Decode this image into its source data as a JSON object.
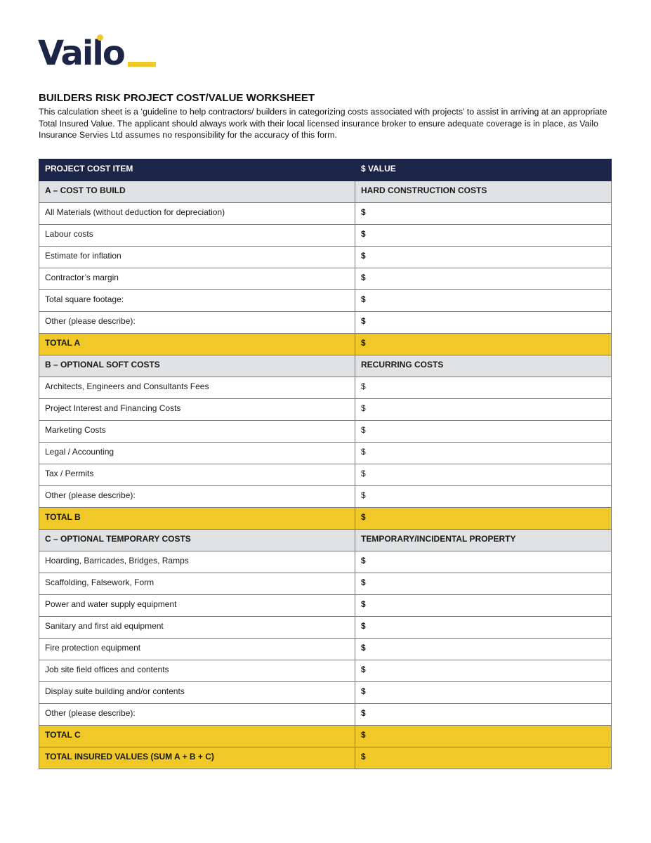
{
  "logo": {
    "text": "Vailo",
    "colors": {
      "navy": "#1c2448",
      "yellow": "#f0c929"
    }
  },
  "title": "BUILDERS RISK PROJECT COST/VALUE WORKSHEET",
  "intro": "This calculation sheet is a ‘guideline to help contractors/ builders in categorizing costs associated with projects’ to assist in arriving at an appropriate Total Insured Value. The applicant should always work with their local licensed insurance broker to ensure adequate coverage is in place, as Vailo Insurance Servies Ltd assumes no responsibility for the accuracy of this form.",
  "table": {
    "headers": [
      "PROJECT COST ITEM",
      "$ VALUE"
    ],
    "rows": [
      {
        "type": "sec",
        "item": "A – COST TO BUILD",
        "value": "HARD CONSTRUCTION COSTS"
      },
      {
        "type": "row",
        "item": "All Materials (without deduction for depreciation)",
        "value": "$",
        "bold": true
      },
      {
        "type": "row",
        "item": "Labour costs",
        "value": "$",
        "bold": true
      },
      {
        "type": "row",
        "item": "Estimate for inflation",
        "value": "$",
        "bold": true
      },
      {
        "type": "row",
        "item": "Contractor’s margin",
        "value": "$",
        "bold": true
      },
      {
        "type": "row",
        "item": "Total square footage:",
        "value": "$",
        "bold": true
      },
      {
        "type": "row",
        "item": "Other (please describe):",
        "value": "$",
        "bold": true
      },
      {
        "type": "tot",
        "item": "TOTAL A",
        "value": "$"
      },
      {
        "type": "sec",
        "item": "B – OPTIONAL SOFT COSTS",
        "value": "RECURRING COSTS"
      },
      {
        "type": "row",
        "item": "Architects, Engineers and Consultants Fees",
        "value": "$",
        "bold": false
      },
      {
        "type": "row",
        "item": "Project Interest and Financing Costs",
        "value": "$",
        "bold": false
      },
      {
        "type": "row",
        "item": "Marketing Costs",
        "value": "$",
        "bold": false
      },
      {
        "type": "row",
        "item": "Legal / Accounting",
        "value": "$",
        "bold": false
      },
      {
        "type": "row",
        "item": "Tax / Permits",
        "value": "$",
        "bold": false
      },
      {
        "type": "row",
        "item": "Other (please describe):",
        "value": "$",
        "bold": false
      },
      {
        "type": "tot",
        "item": "TOTAL B",
        "value": "$"
      },
      {
        "type": "sec",
        "item": "C – OPTIONAL TEMPORARY COSTS",
        "value": "TEMPORARY/INCIDENTAL PROPERTY"
      },
      {
        "type": "row",
        "item": "Hoarding, Barricades, Bridges, Ramps",
        "value": "$",
        "bold": true
      },
      {
        "type": "row",
        "item": "Scaffolding, Falsework, Form",
        "value": "$",
        "bold": true
      },
      {
        "type": "row",
        "item": "Power and water supply equipment",
        "value": "$",
        "bold": true
      },
      {
        "type": "row",
        "item": "Sanitary and first aid equipment",
        "value": "$",
        "bold": true
      },
      {
        "type": "row",
        "item": "Fire protection equipment",
        "value": "$",
        "bold": true
      },
      {
        "type": "row",
        "item": "Job site field offices and contents",
        "value": "$",
        "bold": true
      },
      {
        "type": "row",
        "item": "Display suite building and/or contents",
        "value": "$",
        "bold": true
      },
      {
        "type": "row",
        "item": "Other (please describe):",
        "value": "$",
        "bold": true
      },
      {
        "type": "tot",
        "item": "TOTAL C",
        "value": "$"
      },
      {
        "type": "tot",
        "item": "TOTAL INSURED VALUES (SUM A + B + C)",
        "value": "$"
      }
    ]
  }
}
